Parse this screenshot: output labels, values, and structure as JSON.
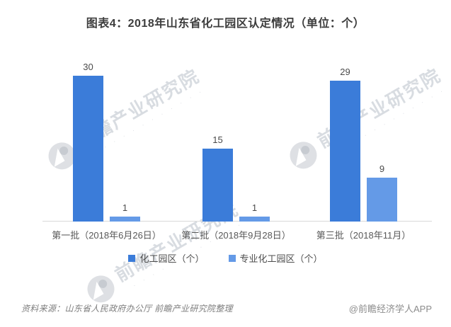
{
  "chart_data": {
    "type": "bar",
    "title": "图表4：2018年山东省化工园区认定情况（单位：个）",
    "categories": [
      "第一批（2018年6月26日）",
      "第二批（2018年9月28日）",
      "第三批（2018年11月）"
    ],
    "series": [
      {
        "name": "化工园区（个）",
        "color": "#3B7CD9",
        "values": [
          30,
          15,
          29
        ]
      },
      {
        "name": "专业化工园区（个）",
        "color": "#649AE7",
        "values": [
          1,
          1,
          9
        ]
      }
    ],
    "xlabel": "",
    "ylabel": "",
    "unit": "个",
    "ylim": [
      0,
      30
    ],
    "grid": false,
    "y_axis_visible": false,
    "value_labels": true,
    "legend_position": "bottom",
    "axis_line_color": "#d9d9d9"
  },
  "watermark": {
    "text": "前瞻产业研究院",
    "dots": "· · · · · · · · · · · ·"
  },
  "footer": {
    "source": "资料来源：山东省人民政府办公厅  前瞻产业研究院整理",
    "credit": "@前瞻经济学人APP"
  }
}
